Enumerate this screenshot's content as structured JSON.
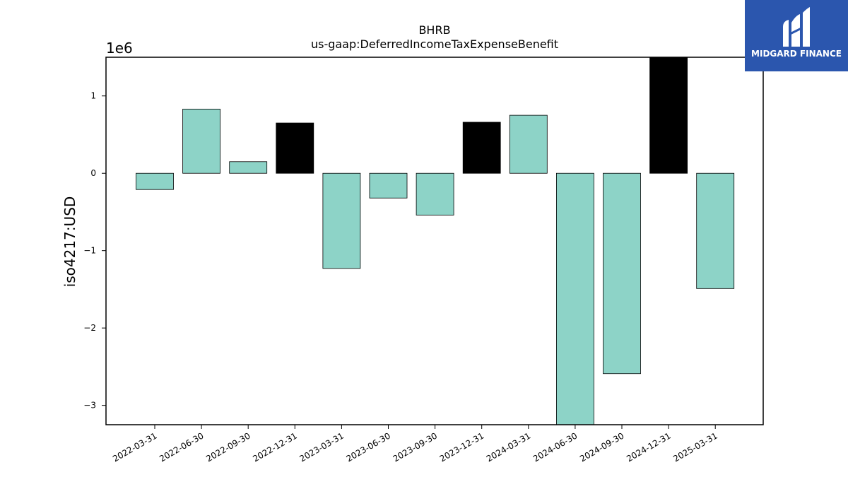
{
  "chart_data": {
    "type": "bar",
    "title": "BHRB",
    "subtitle": "us-gaap:DeferredIncomeTaxExpenseBenefit",
    "ylabel": "iso4217:USD",
    "scale_label": "1e6",
    "ylim": [
      -3.25,
      1.5
    ],
    "yticks": [
      -3,
      -2,
      -1,
      0,
      1
    ],
    "ytick_labels": [
      "−3",
      "−2",
      "−1",
      "0",
      "1"
    ],
    "categories": [
      "2022-03-31",
      "2022-06-30",
      "2022-09-30",
      "2022-12-31",
      "2023-03-31",
      "2023-06-30",
      "2023-09-30",
      "2023-12-31",
      "2024-03-31",
      "2024-06-30",
      "2024-09-30",
      "2024-12-31",
      "2025-03-31"
    ],
    "values": [
      -0.21,
      0.83,
      0.15,
      0.65,
      -1.23,
      -0.32,
      -0.54,
      0.66,
      0.75,
      -3.25,
      -2.59,
      1.5,
      -1.49
    ],
    "highlighted": [
      false,
      false,
      false,
      true,
      false,
      false,
      false,
      true,
      false,
      false,
      false,
      true,
      false
    ],
    "colors": {
      "bar": "#8dd3c7",
      "highlight": "#000000",
      "edge": "#000000"
    }
  },
  "logo": {
    "text": "MIDGARD FINANCE",
    "bg": "#2b56ae"
  }
}
